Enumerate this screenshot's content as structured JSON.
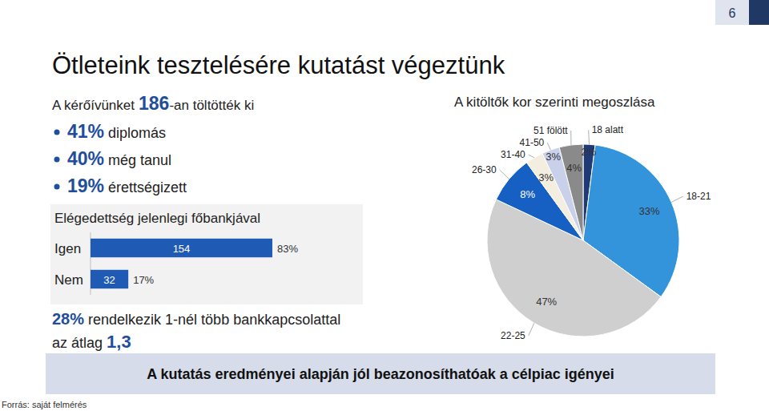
{
  "slide": {
    "page_number": 6,
    "title": "Ötleteink tesztelésére kutatást végeztünk",
    "respondents": {
      "prefix": "A kérőívünket",
      "count": 186,
      "suffix": "-an töltötték ki"
    },
    "bullets": [
      {
        "value_label": "41%",
        "text": "diplomás"
      },
      {
        "value_label": "40%",
        "text": "még tanul"
      },
      {
        "value_label": "19%",
        "text": "érettségizett"
      }
    ],
    "summary": {
      "highlight": "28%",
      "text": "rendelkezik 1-nél több bankkapcsolattal"
    },
    "average": {
      "text": "az átlag",
      "value": "1,3"
    },
    "conclusion": "A kutatás eredményei alapján jól beazonosíthatóak a célpiac igényei",
    "source": "Forrás: saját felmérés"
  },
  "chart_data": [
    {
      "type": "pie",
      "title": "A kitöltők kor szerinti megoszlása",
      "categories": [
        "18 alatt",
        "18-21",
        "22-25",
        "26-30",
        "31-40",
        "41-50",
        "51 fölött"
      ],
      "values": [
        2,
        33,
        47,
        8,
        3,
        3,
        4
      ],
      "value_labels": [
        "2%",
        "33%",
        "47%",
        "8%",
        "3%",
        "3%",
        "4%"
      ],
      "colors": [
        "#1f3a75",
        "#3394dc",
        "#cfcfcf",
        "#1660c4",
        "#f3eee0",
        "#c9d0ea",
        "#8a8a8a"
      ],
      "data_labels": true
    },
    {
      "type": "bar",
      "title": "Elégedettség jelenlegi főbankjával",
      "orientation": "horizontal",
      "categories": [
        "Igen",
        "Nem"
      ],
      "values": [
        154,
        32
      ],
      "share_labels": [
        "83%",
        "17%"
      ],
      "xlim": [
        0,
        230
      ],
      "color": "#1f5bb5",
      "data_labels": true,
      "tick_labels": "y"
    }
  ]
}
